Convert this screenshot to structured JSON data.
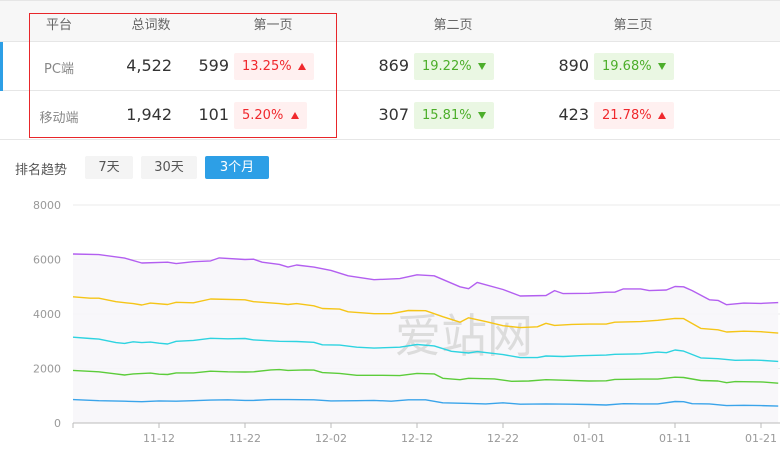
{
  "table": {
    "headers": {
      "platform": "平台",
      "total": "总词数",
      "page1": "第一页",
      "page2": "第二页",
      "page3": "第三页"
    },
    "rows": [
      {
        "platform": "PC端",
        "total": "4,522",
        "p1": "599",
        "p1_pct": "13.25%",
        "p1_dir": "up",
        "p2": "869",
        "p2_pct": "19.22%",
        "p2_dir": "down",
        "p3": "890",
        "p3_pct": "19.68%",
        "p3_dir": "down"
      },
      {
        "platform": "移动端",
        "total": "1,942",
        "p1": "101",
        "p1_pct": "5.20%",
        "p1_dir": "up",
        "p2": "307",
        "p2_pct": "15.81%",
        "p2_dir": "down",
        "p3": "423",
        "p3_pct": "21.78%",
        "p3_dir": "up"
      }
    ]
  },
  "trend": {
    "label": "排名趋势",
    "buttons": [
      "7天",
      "30天",
      "3个月"
    ],
    "active": "3个月"
  },
  "colors": {
    "up": "#f0282d",
    "down": "#4cae2a",
    "accent": "#2d9fe6",
    "highlight_box": "#e8262a"
  },
  "chart_data": {
    "type": "line",
    "watermark": "爱站网",
    "x_start": "11-02",
    "x_end": "01-23",
    "x_ticks": [
      "11-12",
      "11-22",
      "12-02",
      "12-12",
      "12-22",
      "01-01",
      "01-11",
      "01-21"
    ],
    "y_ticks": [
      "0",
      "2000",
      "4000",
      "6000",
      "8000"
    ],
    "ylim": [
      0,
      8000
    ],
    "grid": "horizontal",
    "series": [
      {
        "color": "#b35ff0",
        "points": [
          [
            0,
            6200
          ],
          [
            3,
            6180
          ],
          [
            6,
            6050
          ],
          [
            8,
            5870
          ],
          [
            11,
            5900
          ],
          [
            12,
            5850
          ],
          [
            14,
            5920
          ],
          [
            16,
            5950
          ],
          [
            17,
            6060
          ],
          [
            20,
            6000
          ],
          [
            21,
            6010
          ],
          [
            22,
            5900
          ],
          [
            24,
            5820
          ],
          [
            25,
            5720
          ],
          [
            26,
            5800
          ],
          [
            28,
            5720
          ],
          [
            30,
            5600
          ],
          [
            32,
            5400
          ],
          [
            35,
            5260
          ],
          [
            38,
            5300
          ],
          [
            40,
            5440
          ],
          [
            42,
            5400
          ],
          [
            45,
            5000
          ],
          [
            46,
            4930
          ],
          [
            47,
            5160
          ],
          [
            50,
            4900
          ],
          [
            52,
            4660
          ],
          [
            55,
            4680
          ],
          [
            56,
            4860
          ],
          [
            57,
            4750
          ],
          [
            60,
            4760
          ],
          [
            62,
            4800
          ],
          [
            63,
            4800
          ],
          [
            64,
            4920
          ],
          [
            66,
            4920
          ],
          [
            67,
            4860
          ],
          [
            69,
            4880
          ],
          [
            70,
            5010
          ],
          [
            71,
            5000
          ],
          [
            72,
            4860
          ],
          [
            74,
            4520
          ],
          [
            75,
            4500
          ],
          [
            76,
            4340
          ],
          [
            78,
            4400
          ],
          [
            80,
            4390
          ],
          [
            82,
            4420
          ]
        ]
      },
      {
        "color": "#f5c518",
        "points": [
          [
            0,
            4630
          ],
          [
            2,
            4580
          ],
          [
            3,
            4580
          ],
          [
            5,
            4450
          ],
          [
            7,
            4380
          ],
          [
            8,
            4330
          ],
          [
            9,
            4400
          ],
          [
            11,
            4350
          ],
          [
            12,
            4430
          ],
          [
            14,
            4410
          ],
          [
            16,
            4550
          ],
          [
            20,
            4520
          ],
          [
            21,
            4450
          ],
          [
            24,
            4380
          ],
          [
            25,
            4350
          ],
          [
            26,
            4380
          ],
          [
            28,
            4300
          ],
          [
            29,
            4200
          ],
          [
            31,
            4180
          ],
          [
            32,
            4080
          ],
          [
            35,
            4010
          ],
          [
            37,
            4010
          ],
          [
            39,
            4130
          ],
          [
            41,
            4120
          ],
          [
            43,
            3900
          ],
          [
            45,
            3700
          ],
          [
            46,
            3860
          ],
          [
            48,
            3720
          ],
          [
            50,
            3570
          ],
          [
            52,
            3500
          ],
          [
            54,
            3530
          ],
          [
            55,
            3660
          ],
          [
            56,
            3580
          ],
          [
            58,
            3620
          ],
          [
            60,
            3630
          ],
          [
            62,
            3630
          ],
          [
            63,
            3700
          ],
          [
            66,
            3720
          ],
          [
            68,
            3770
          ],
          [
            70,
            3840
          ],
          [
            71,
            3830
          ],
          [
            73,
            3470
          ],
          [
            75,
            3420
          ],
          [
            76,
            3340
          ],
          [
            78,
            3370
          ],
          [
            80,
            3350
          ],
          [
            82,
            3300
          ]
        ]
      },
      {
        "color": "#2ed3e0",
        "points": [
          [
            0,
            3150
          ],
          [
            2,
            3100
          ],
          [
            3,
            3080
          ],
          [
            5,
            2950
          ],
          [
            6,
            2920
          ],
          [
            7,
            2980
          ],
          [
            8,
            2950
          ],
          [
            9,
            2970
          ],
          [
            10,
            2930
          ],
          [
            11,
            2900
          ],
          [
            12,
            3000
          ],
          [
            14,
            3030
          ],
          [
            16,
            3110
          ],
          [
            18,
            3090
          ],
          [
            20,
            3100
          ],
          [
            21,
            3050
          ],
          [
            24,
            3000
          ],
          [
            26,
            2990
          ],
          [
            28,
            2960
          ],
          [
            29,
            2870
          ],
          [
            31,
            2860
          ],
          [
            33,
            2780
          ],
          [
            35,
            2750
          ],
          [
            38,
            2780
          ],
          [
            40,
            2880
          ],
          [
            42,
            2830
          ],
          [
            44,
            2630
          ],
          [
            46,
            2570
          ],
          [
            47,
            2620
          ],
          [
            50,
            2510
          ],
          [
            52,
            2400
          ],
          [
            54,
            2400
          ],
          [
            55,
            2460
          ],
          [
            57,
            2440
          ],
          [
            59,
            2470
          ],
          [
            62,
            2490
          ],
          [
            63,
            2520
          ],
          [
            66,
            2540
          ],
          [
            68,
            2600
          ],
          [
            69,
            2580
          ],
          [
            70,
            2680
          ],
          [
            71,
            2640
          ],
          [
            73,
            2390
          ],
          [
            75,
            2360
          ],
          [
            77,
            2300
          ],
          [
            79,
            2310
          ],
          [
            80,
            2300
          ],
          [
            82,
            2260
          ]
        ]
      },
      {
        "color": "#5ccc3a",
        "points": [
          [
            0,
            1930
          ],
          [
            3,
            1880
          ],
          [
            5,
            1800
          ],
          [
            6,
            1760
          ],
          [
            7,
            1800
          ],
          [
            9,
            1830
          ],
          [
            10,
            1790
          ],
          [
            11,
            1780
          ],
          [
            12,
            1840
          ],
          [
            14,
            1840
          ],
          [
            16,
            1900
          ],
          [
            18,
            1880
          ],
          [
            20,
            1870
          ],
          [
            21,
            1880
          ],
          [
            23,
            1950
          ],
          [
            24,
            1960
          ],
          [
            25,
            1930
          ],
          [
            27,
            1950
          ],
          [
            28,
            1940
          ],
          [
            29,
            1850
          ],
          [
            31,
            1820
          ],
          [
            33,
            1750
          ],
          [
            36,
            1750
          ],
          [
            38,
            1740
          ],
          [
            40,
            1820
          ],
          [
            42,
            1800
          ],
          [
            43,
            1640
          ],
          [
            45,
            1590
          ],
          [
            46,
            1640
          ],
          [
            49,
            1620
          ],
          [
            51,
            1530
          ],
          [
            53,
            1540
          ],
          [
            55,
            1590
          ],
          [
            57,
            1570
          ],
          [
            60,
            1540
          ],
          [
            62,
            1550
          ],
          [
            63,
            1600
          ],
          [
            66,
            1610
          ],
          [
            68,
            1610
          ],
          [
            70,
            1680
          ],
          [
            71,
            1670
          ],
          [
            73,
            1560
          ],
          [
            75,
            1540
          ],
          [
            76,
            1480
          ],
          [
            77,
            1520
          ],
          [
            80,
            1510
          ],
          [
            82,
            1460
          ]
        ]
      },
      {
        "color": "#3aa4ea",
        "points": [
          [
            0,
            860
          ],
          [
            3,
            820
          ],
          [
            6,
            800
          ],
          [
            8,
            780
          ],
          [
            10,
            810
          ],
          [
            12,
            800
          ],
          [
            14,
            820
          ],
          [
            16,
            840
          ],
          [
            18,
            850
          ],
          [
            20,
            830
          ],
          [
            21,
            830
          ],
          [
            23,
            860
          ],
          [
            25,
            860
          ],
          [
            28,
            850
          ],
          [
            30,
            810
          ],
          [
            33,
            820
          ],
          [
            35,
            830
          ],
          [
            37,
            800
          ],
          [
            39,
            850
          ],
          [
            41,
            850
          ],
          [
            43,
            740
          ],
          [
            46,
            720
          ],
          [
            48,
            700
          ],
          [
            50,
            740
          ],
          [
            52,
            690
          ],
          [
            55,
            700
          ],
          [
            58,
            690
          ],
          [
            60,
            680
          ],
          [
            62,
            660
          ],
          [
            64,
            710
          ],
          [
            66,
            700
          ],
          [
            68,
            700
          ],
          [
            70,
            790
          ],
          [
            71,
            780
          ],
          [
            72,
            710
          ],
          [
            74,
            700
          ],
          [
            76,
            640
          ],
          [
            78,
            650
          ],
          [
            80,
            640
          ],
          [
            82,
            620
          ]
        ]
      }
    ]
  }
}
